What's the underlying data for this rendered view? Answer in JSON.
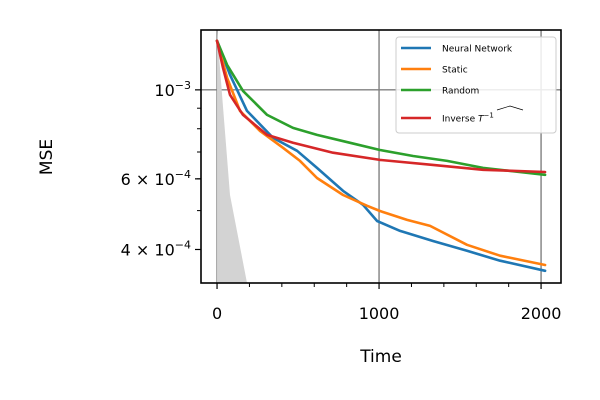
{
  "chart_data": {
    "type": "line",
    "title": "",
    "xlabel": "Time",
    "ylabel": "MSE",
    "xlim": [
      -99,
      2123
    ],
    "ylim": [
      0.00033,
      0.00141
    ],
    "yscale": "log",
    "grid": "major ticks only",
    "legend_position": "top-right",
    "x_ticks": [
      0,
      1000,
      2000
    ],
    "x_tick_labels": [
      "0",
      "1000",
      "2000"
    ],
    "x_minor_ticks": [
      200,
      400,
      600,
      800,
      1200,
      1400,
      1600,
      1800
    ],
    "y_ticks": [
      0.001,
      0.0006,
      0.0004
    ],
    "y_tick_labels": [
      {
        "mant": "",
        "base": "10",
        "exp": "−3"
      },
      {
        "mant": "6 × ",
        "base": "10",
        "exp": "−4"
      },
      {
        "mant": "4 × ",
        "base": "10",
        "exp": "−4"
      }
    ],
    "y_minor_ticks": [
      0.0004,
      0.0005,
      0.0006,
      0.0007,
      0.0008,
      0.0009
    ],
    "series": [
      {
        "name": "Neural Network",
        "color": "#1f77b4",
        "x": [
          0,
          80,
          185,
          346,
          494,
          617,
          778,
          901,
          988,
          1130,
          1333,
          1543,
          1747,
          2025
        ],
        "y": [
          0.001325,
          0.00109,
          0.000886,
          0.000759,
          0.000705,
          0.000639,
          0.00056,
          0.000517,
          0.000471,
          0.000445,
          0.00042,
          0.000397,
          0.000375,
          0.000354
        ]
      },
      {
        "name": "Static",
        "color": "#ff7f0e",
        "x": [
          0,
          62,
          142,
          265,
          407,
          512,
          617,
          778,
          926,
          1006,
          1173,
          1315,
          1543,
          1747,
          2025
        ],
        "y": [
          0.001325,
          0.001071,
          0.000886,
          0.00079,
          0.000717,
          0.000665,
          0.000603,
          0.000547,
          0.000514,
          0.000499,
          0.000474,
          0.000458,
          0.000411,
          0.000386,
          0.000366
        ]
      },
      {
        "name": "Random",
        "color": "#2ca02c",
        "x": [
          0,
          62,
          160,
          309,
          469,
          617,
          821,
          1006,
          1210,
          1420,
          1642,
          2025
        ],
        "y": [
          0.001325,
          0.001154,
          0.000994,
          0.000866,
          0.000804,
          0.000772,
          0.000738,
          0.000708,
          0.000684,
          0.000665,
          0.000639,
          0.000614
        ]
      },
      {
        "name": "Inverse",
        "name_math": {
          "base": "T",
          "sup": "−1",
          "accent": "widehat"
        },
        "color": "#d62728",
        "x": [
          0,
          37,
          80,
          160,
          309,
          469,
          716,
          1006,
          1333,
          1642,
          2025
        ],
        "y": [
          0.001325,
          0.001135,
          0.000972,
          0.000866,
          0.000772,
          0.000738,
          0.000697,
          0.000669,
          0.00065,
          0.000632,
          0.000624
        ]
      }
    ],
    "shaded_region": {
      "color": "#d3d3d3",
      "x": [
        0,
        31,
        80,
        185
      ],
      "y": [
        0.00141,
        0.000972,
        0.000547,
        0.00033
      ]
    }
  }
}
